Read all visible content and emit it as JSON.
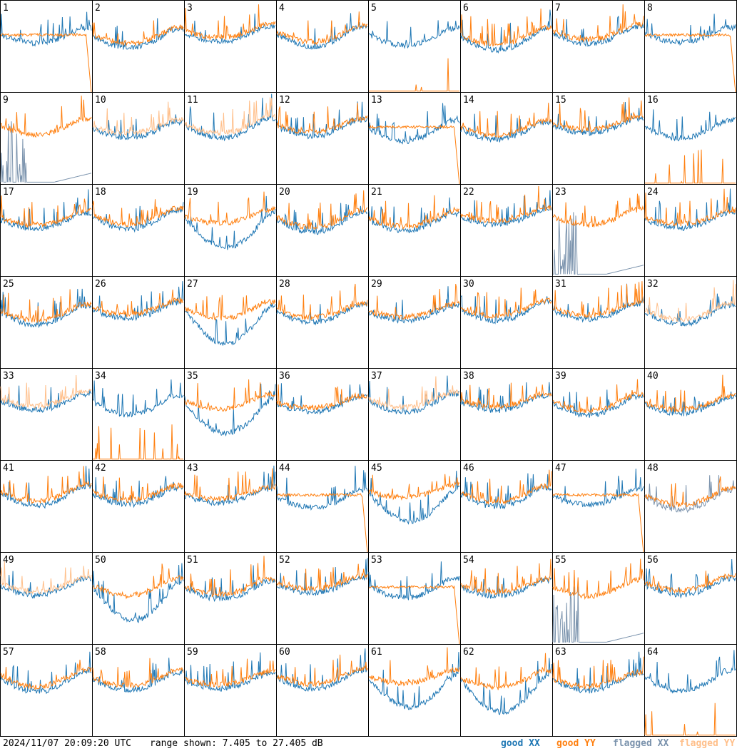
{
  "chart_data": {
    "type": "line",
    "layout": "8x8 small multiples",
    "panels": [
      "1",
      "2",
      "3",
      "4",
      "5",
      "6",
      "7",
      "8",
      "9",
      "10",
      "11",
      "12",
      "13",
      "14",
      "15",
      "16",
      "17",
      "18",
      "19",
      "20",
      "21",
      "22",
      "23",
      "24",
      "25",
      "26",
      "27",
      "28",
      "29",
      "30",
      "31",
      "32",
      "33",
      "34",
      "35",
      "36",
      "37",
      "38",
      "39",
      "40",
      "41",
      "42",
      "43",
      "44",
      "45",
      "46",
      "47",
      "48",
      "49",
      "50",
      "51",
      "52",
      "53",
      "54",
      "55",
      "56",
      "57",
      "58",
      "59",
      "60",
      "61",
      "62",
      "63",
      "64"
    ],
    "ylim": [
      7.405,
      27.405
    ],
    "series": [
      {
        "name": "good XX",
        "color": "#1f77b4"
      },
      {
        "name": "good YY",
        "color": "#ff7f0e"
      },
      {
        "name": "flagged XX",
        "color": "#7b93ad"
      },
      {
        "name": "flagged YY",
        "color": "#ffbf8a"
      }
    ]
  },
  "footer": {
    "timestamp": "2024/11/07 20:09:20 UTC",
    "range": "range shown: 7.405 to 27.405 dB"
  },
  "legend": {
    "good_xx": "good XX",
    "good_yy": "good YY",
    "flagged_xx": "flagged XX",
    "flagged_yy": "flagged YY"
  }
}
